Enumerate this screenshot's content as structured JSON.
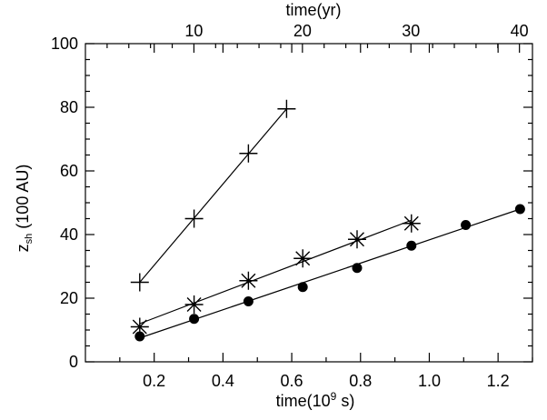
{
  "chart_data": {
    "type": "scatter",
    "xlabel": "time(10",
    "xlabel_sup": "9",
    "xlabel_end": " s)",
    "x2label": "time(yr)",
    "ylabel": "z",
    "ylabel_sub": "sh",
    "ylabel_end": " (100 AU)",
    "xlim": [
      0.0,
      1.3
    ],
    "ylim": [
      0,
      100
    ],
    "x2lim": [
      0,
      41.2
    ],
    "x_ticks": [
      {
        "value": 0.2,
        "label": "0.2"
      },
      {
        "value": 0.4,
        "label": "0.4"
      },
      {
        "value": 0.6,
        "label": "0.6"
      },
      {
        "value": 0.8,
        "label": "0.8"
      },
      {
        "value": 1.0,
        "label": "1.0"
      },
      {
        "value": 1.2,
        "label": "1.2"
      }
    ],
    "y_ticks": [
      {
        "value": 0,
        "label": "0"
      },
      {
        "value": 20,
        "label": "20"
      },
      {
        "value": 40,
        "label": "40"
      },
      {
        "value": 60,
        "label": "60"
      },
      {
        "value": 80,
        "label": "80"
      },
      {
        "value": 100,
        "label": "100"
      }
    ],
    "x2_ticks": [
      {
        "value": 10,
        "label": "10"
      },
      {
        "value": 20,
        "label": "20"
      },
      {
        "value": 30,
        "label": "30"
      },
      {
        "value": 40,
        "label": "40"
      }
    ],
    "series": [
      {
        "marker": "plus",
        "x": [
          0.158,
          0.316,
          0.474,
          0.585
        ],
        "y": [
          25,
          45,
          65.5,
          79.5
        ],
        "fit": [
          [
            0.158,
            25
          ],
          [
            0.585,
            79.5
          ]
        ]
      },
      {
        "marker": "asterisk",
        "x": [
          0.158,
          0.316,
          0.474,
          0.632,
          0.79,
          0.948
        ],
        "y": [
          11,
          18,
          25.5,
          32.5,
          38.5,
          43.5
        ],
        "fit": [
          [
            0.158,
            12
          ],
          [
            0.948,
            44.5
          ]
        ]
      },
      {
        "marker": "dot",
        "x": [
          0.158,
          0.316,
          0.474,
          0.632,
          0.79,
          0.948,
          1.106,
          1.264
        ],
        "y": [
          8,
          13.5,
          19,
          23.5,
          29.5,
          36.5,
          43,
          48
        ],
        "fit": [
          [
            0.158,
            7.5
          ],
          [
            1.264,
            48
          ]
        ]
      }
    ]
  }
}
